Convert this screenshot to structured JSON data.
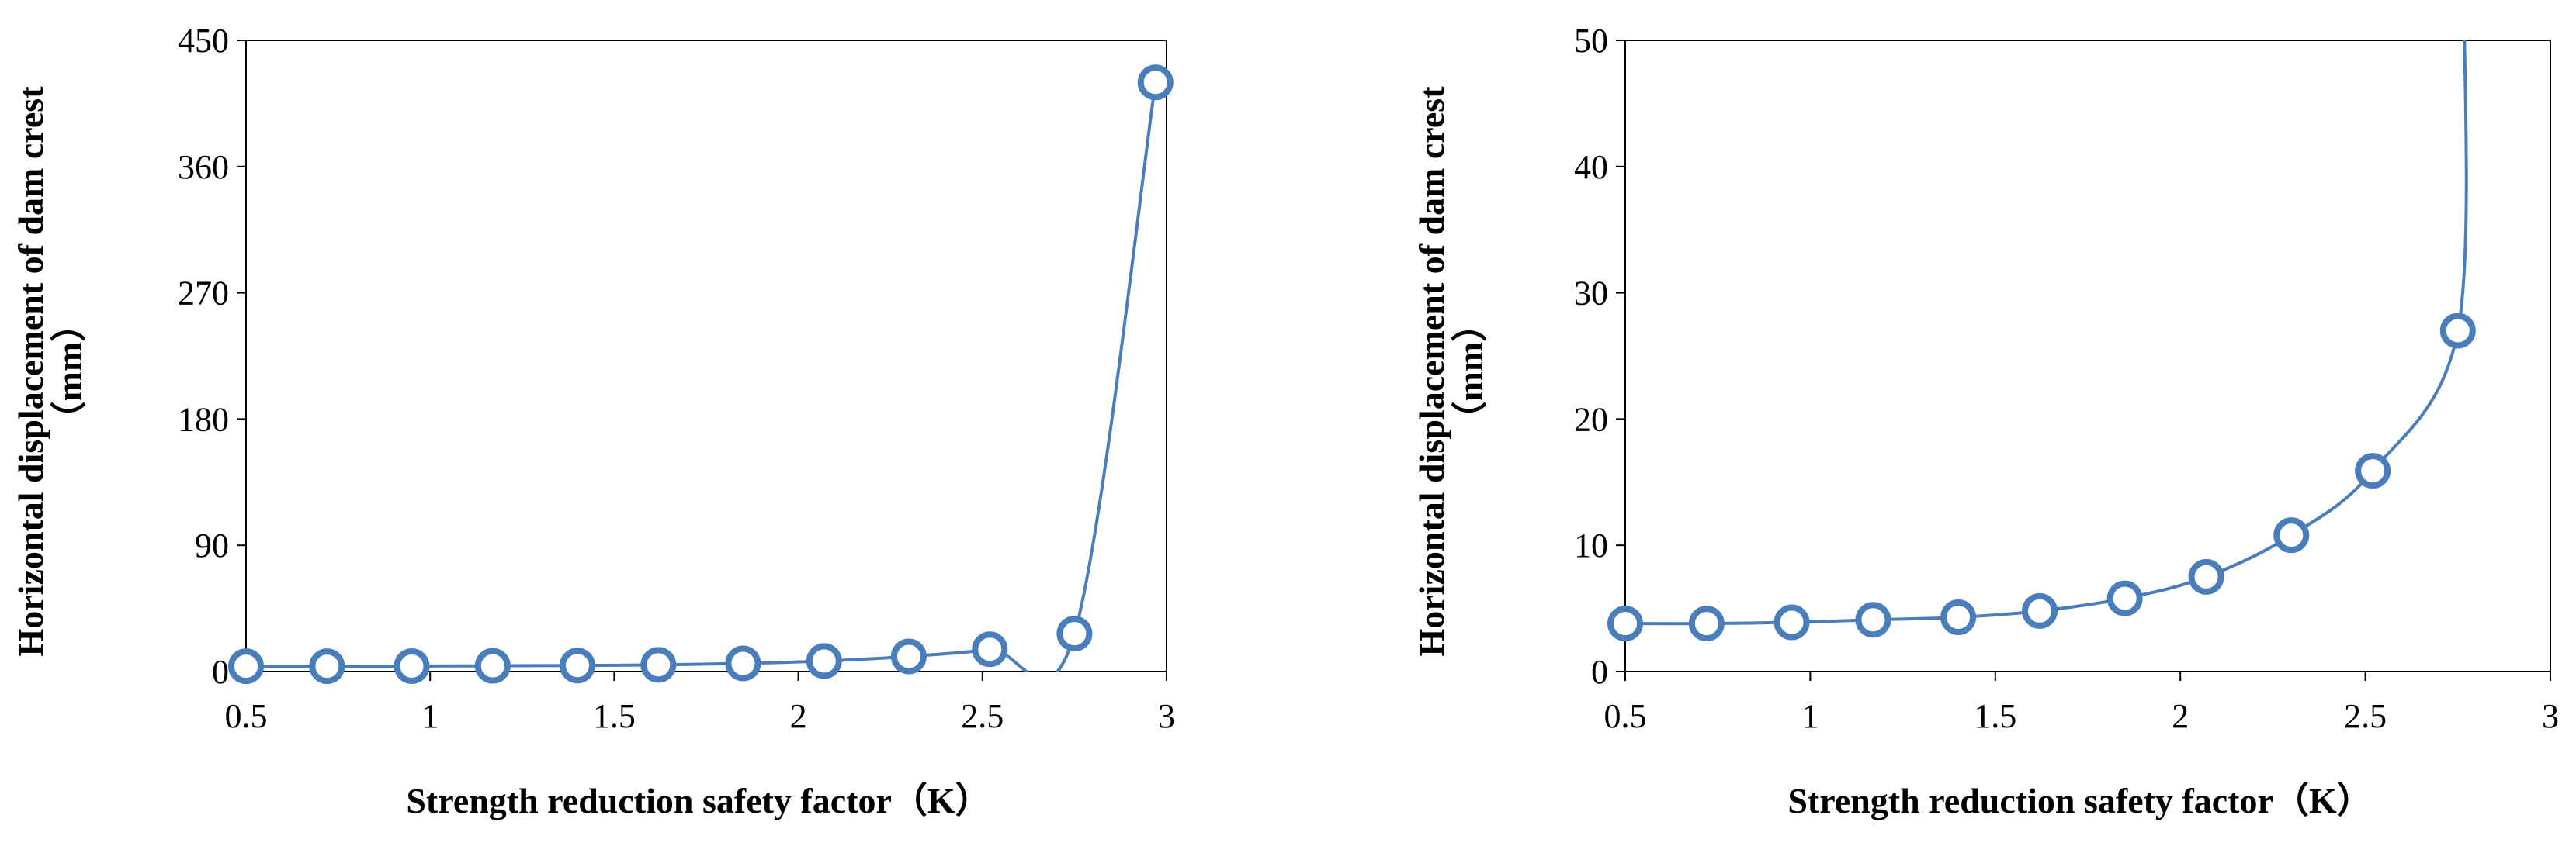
{
  "colors": {
    "series": "#4a7ebb",
    "axis": "#000000"
  },
  "chart_data": [
    {
      "type": "line",
      "xlabel": "Strength reduction safety factor（K）",
      "ylabel": "Horizontal displacement of dam crest",
      "ylabel_unit": "（mm）",
      "xlim": [
        0.5,
        3
      ],
      "ylim": [
        0,
        450
      ],
      "xticks": [
        0.5,
        1,
        1.5,
        2,
        2.5,
        3
      ],
      "yticks": [
        0,
        90,
        180,
        270,
        360,
        450
      ],
      "grid": false,
      "legend": "none",
      "marker": "circle",
      "series": [
        {
          "x": [
            0.5,
            0.72,
            0.95,
            1.17,
            1.4,
            1.62,
            1.85,
            2.07,
            2.3,
            2.52,
            2.75,
            2.97
          ],
          "y": [
            3.8,
            3.8,
            3.9,
            4.1,
            4.3,
            4.8,
            5.8,
            7.5,
            10.8,
            15.9,
            27,
            420
          ]
        }
      ]
    },
    {
      "type": "line",
      "xlabel": "Strength reduction safety factor（K）",
      "ylabel": "Horizontal displacement of dam crest",
      "ylabel_unit": "（mm）",
      "xlim": [
        0.5,
        3
      ],
      "ylim": [
        0,
        50
      ],
      "xticks": [
        0.5,
        1,
        1.5,
        2,
        2.5,
        3
      ],
      "yticks": [
        0,
        10,
        20,
        30,
        40,
        50
      ],
      "grid": false,
      "legend": "none",
      "marker": "circle",
      "series": [
        {
          "x": [
            0.5,
            0.72,
            0.95,
            1.17,
            1.4,
            1.62,
            1.85,
            2.07,
            2.3,
            2.52,
            2.75
          ],
          "y": [
            3.8,
            3.8,
            3.9,
            4.1,
            4.3,
            4.8,
            5.8,
            7.5,
            10.8,
            15.9,
            27
          ]
        }
      ]
    }
  ]
}
